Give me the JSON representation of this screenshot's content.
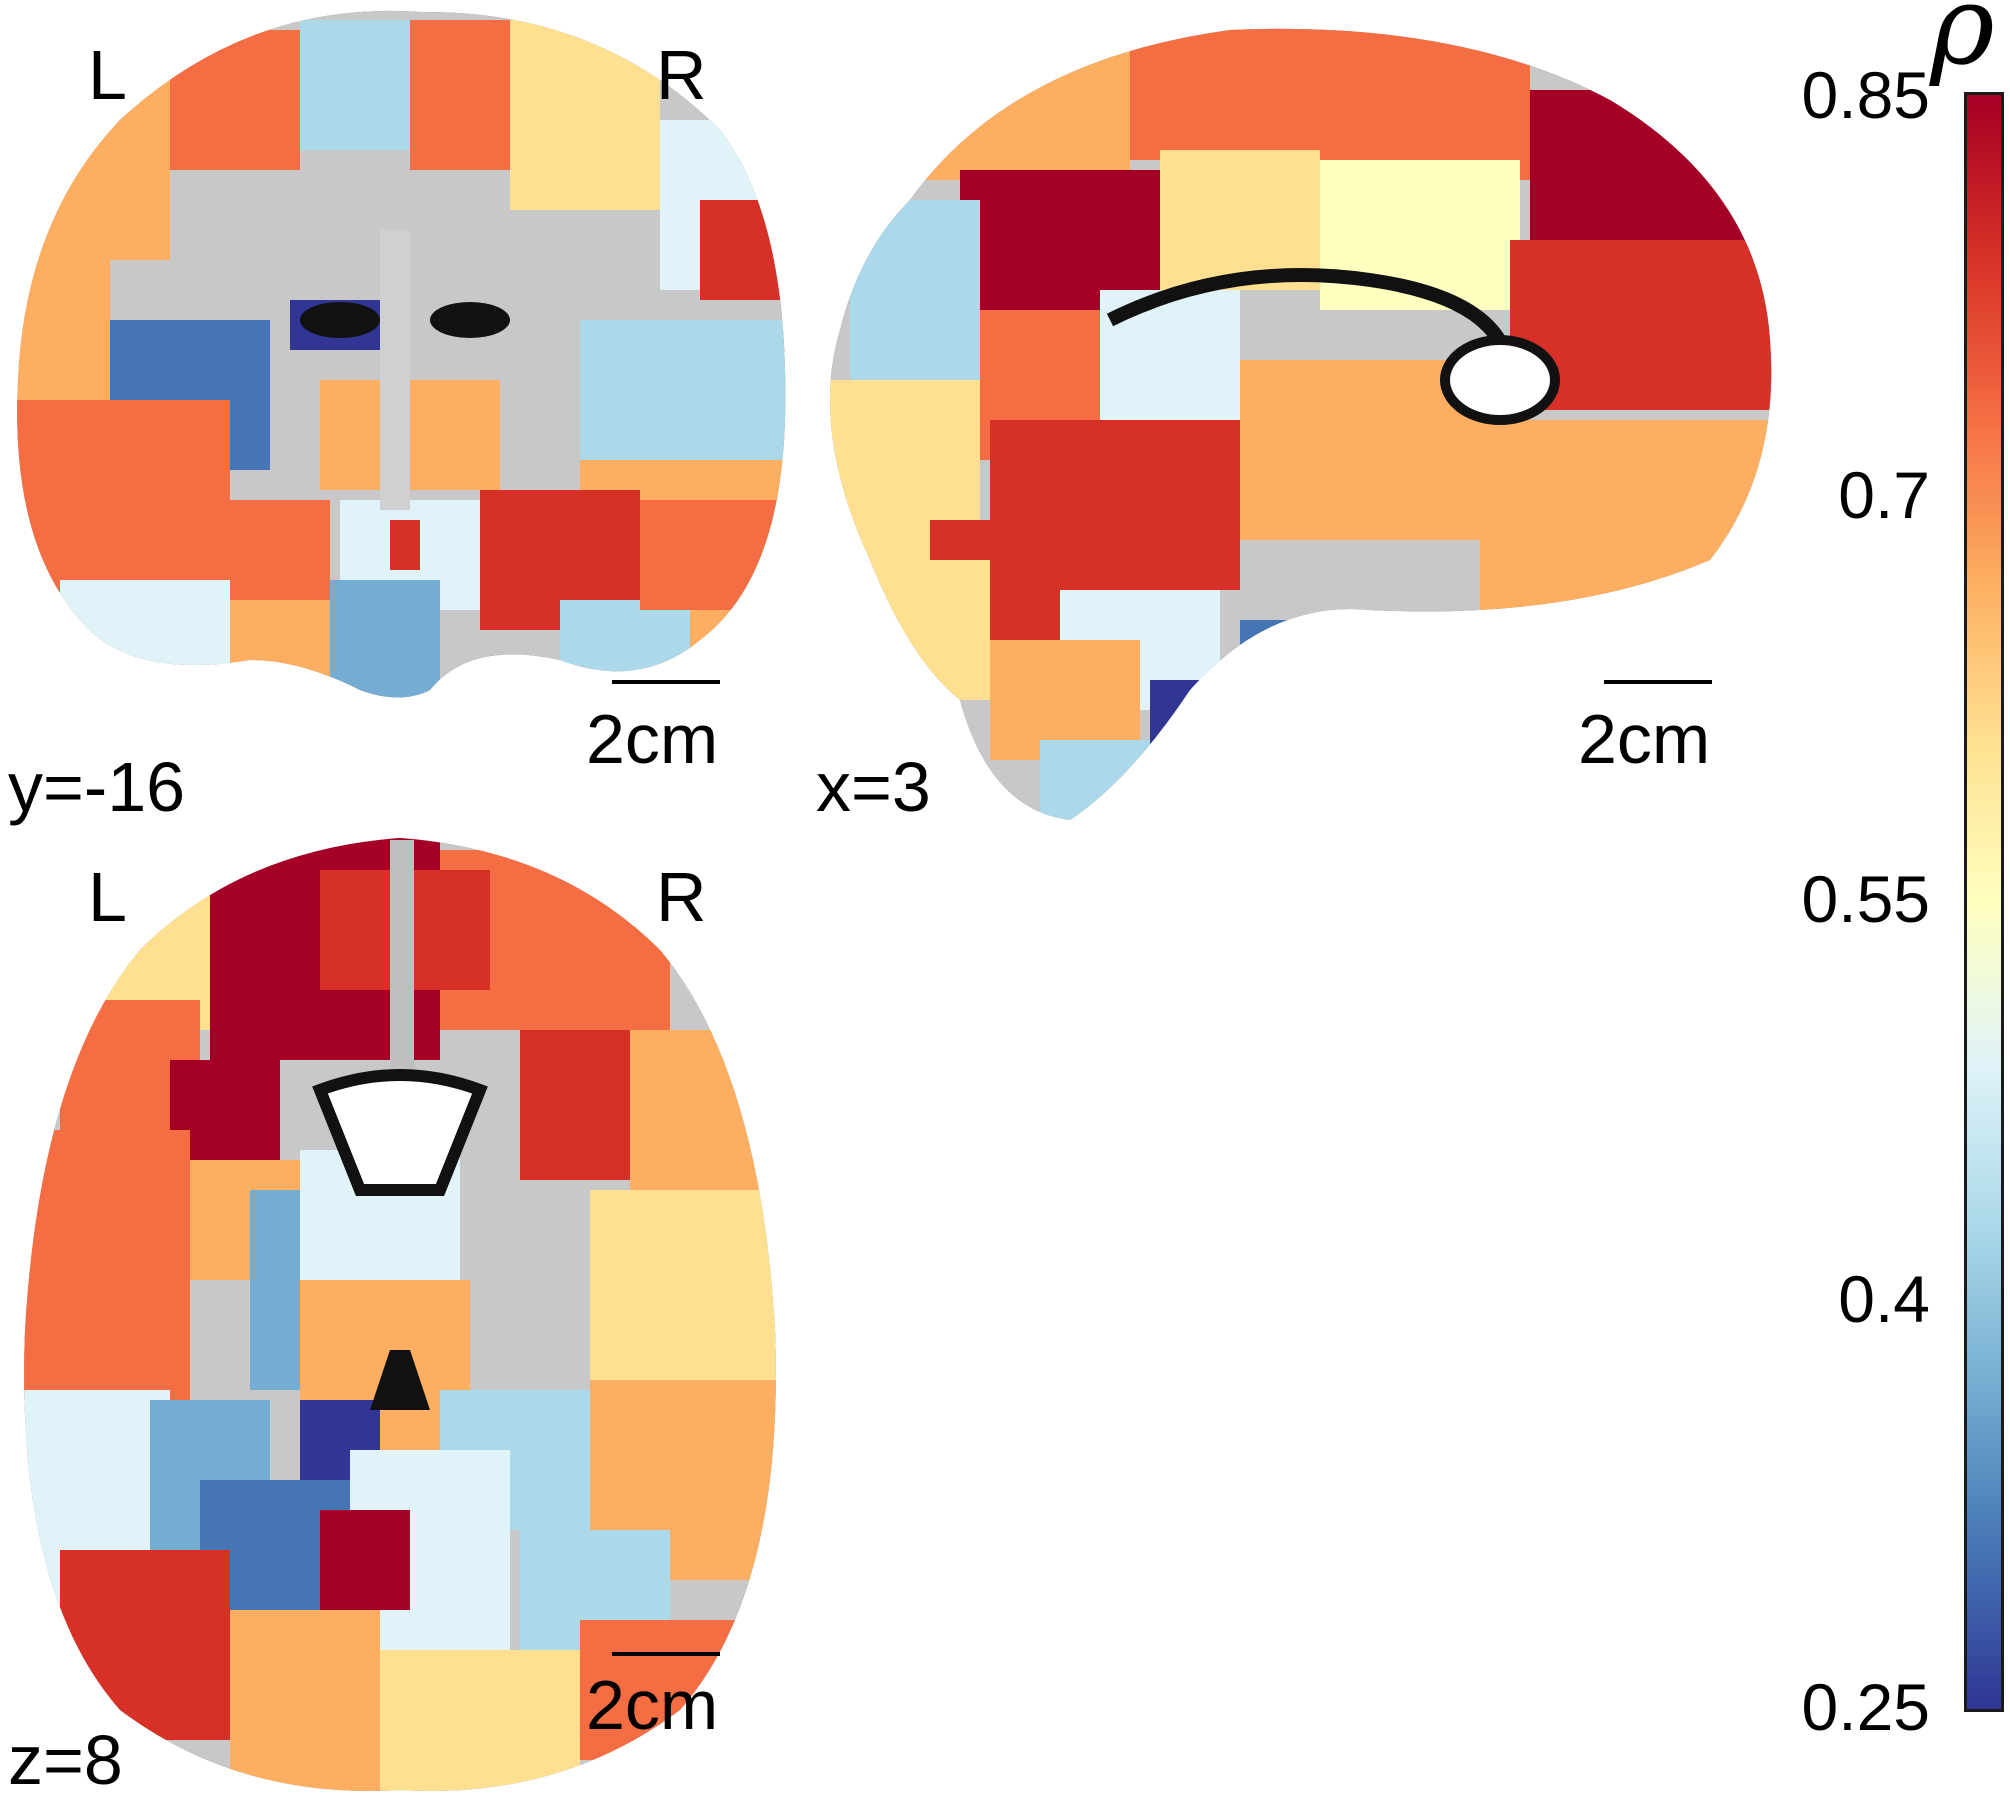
{
  "colorbar": {
    "symbol": "ρ",
    "ticks": [
      "0.85",
      "0.7",
      "0.55",
      "0.4",
      "0.25"
    ],
    "min": 0.25,
    "max": 0.85,
    "colors": [
      "#a50026",
      "#d73027",
      "#f46d43",
      "#fdae61",
      "#fee090",
      "#ffffbf",
      "#e0f3f8",
      "#abd9e9",
      "#74add1",
      "#4575b4",
      "#313695"
    ]
  },
  "panels": {
    "coronal": {
      "coord": "y=-16",
      "left": "L",
      "right": "R",
      "scale": "2cm"
    },
    "sagittal": {
      "coord": "x=3",
      "scale": "2cm"
    },
    "axial": {
      "coord": "z=8",
      "left": "L",
      "right": "R",
      "scale": "2cm"
    }
  }
}
